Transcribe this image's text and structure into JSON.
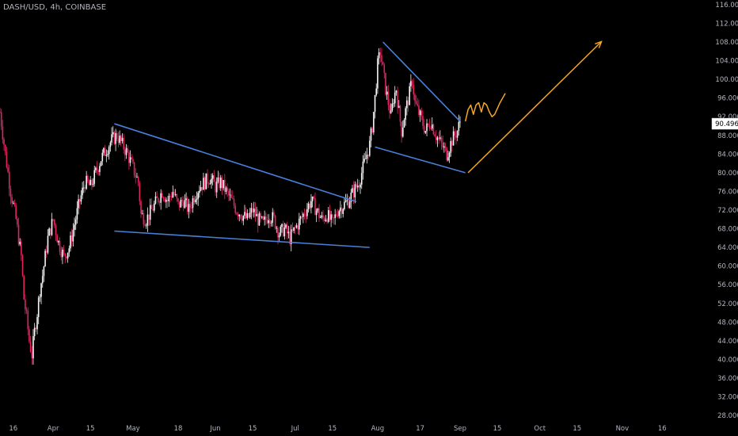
{
  "header": {
    "symbol_line": "DASH/USD, 4h, COINBASE"
  },
  "chart_data": {
    "type": "candlestick",
    "title": "DASH/USD, 4h, COINBASE",
    "yaxis": {
      "position": "right",
      "ticks": [
        116,
        112,
        108,
        104,
        100,
        96,
        92,
        88,
        84,
        80,
        76,
        72,
        68,
        64,
        60,
        56,
        52,
        48,
        44,
        40,
        36,
        32,
        28
      ],
      "tick_labels": [
        "116.000",
        "112.000",
        "108.000",
        "104.000",
        "100.000",
        "96.000",
        "92.000",
        "88.000",
        "84.000",
        "80.000",
        "76.000",
        "72.000",
        "68.000",
        "64.000",
        "60.000",
        "56.000",
        "52.000",
        "48.000",
        "44.000",
        "40.000",
        "36.000",
        "32.000",
        "28.000"
      ],
      "ylim": [
        27,
        117
      ]
    },
    "xaxis": {
      "labels": [
        {
          "label": "16",
          "day": -15
        },
        {
          "label": "Apr",
          "day": 0
        },
        {
          "label": "15",
          "day": 14
        },
        {
          "label": "May",
          "day": 30
        },
        {
          "label": "18",
          "day": 47
        },
        {
          "label": "Jun",
          "day": 61
        },
        {
          "label": "15",
          "day": 75
        },
        {
          "label": "Jul",
          "day": 91
        },
        {
          "label": "15",
          "day": 105
        },
        {
          "label": "Aug",
          "day": 122
        },
        {
          "label": "17",
          "day": 138
        },
        {
          "label": "Sep",
          "day": 153
        },
        {
          "label": "15",
          "day": 167
        },
        {
          "label": "Oct",
          "day": 183
        },
        {
          "label": "15",
          "day": 197
        },
        {
          "label": "Nov",
          "day": 214
        },
        {
          "label": "16",
          "day": 229
        }
      ],
      "xlim": [
        -20,
        245
      ]
    },
    "last_price": {
      "label": "90.496",
      "value": 90.496
    },
    "colors": {
      "up": "#f7f7f7",
      "down": "#e0245e",
      "trendline": "#4a7fd9",
      "projection": "#f5a623"
    },
    "price_path": [
      [
        -20,
        93
      ],
      [
        -18,
        84
      ],
      [
        -16,
        76
      ],
      [
        -14,
        70
      ],
      [
        -12,
        62
      ],
      [
        -11,
        53
      ],
      [
        -10,
        49
      ],
      [
        -9,
        44
      ],
      [
        -8,
        41
      ],
      [
        -7,
        46
      ],
      [
        -6,
        50
      ],
      [
        -5,
        55
      ],
      [
        -4,
        58
      ],
      [
        -3,
        62
      ],
      [
        -2,
        66
      ],
      [
        0,
        70
      ],
      [
        2,
        65
      ],
      [
        4,
        62
      ],
      [
        6,
        64
      ],
      [
        8,
        69
      ],
      [
        10,
        74
      ],
      [
        12,
        78
      ],
      [
        14,
        77
      ],
      [
        16,
        80
      ],
      [
        18,
        83
      ],
      [
        20,
        85
      ],
      [
        22,
        87
      ],
      [
        24,
        88
      ],
      [
        26,
        86
      ],
      [
        28,
        84
      ],
      [
        30,
        81
      ],
      [
        32,
        78
      ],
      [
        33,
        71
      ],
      [
        35,
        70
      ],
      [
        37,
        72
      ],
      [
        39,
        74
      ],
      [
        41,
        76
      ],
      [
        43,
        74
      ],
      [
        45,
        76
      ],
      [
        47,
        73
      ],
      [
        49,
        74
      ],
      [
        51,
        72
      ],
      [
        53,
        75
      ],
      [
        55,
        77
      ],
      [
        57,
        78
      ],
      [
        59,
        79
      ],
      [
        61,
        77
      ],
      [
        63,
        78
      ],
      [
        65,
        76
      ],
      [
        67,
        74
      ],
      [
        69,
        72
      ],
      [
        71,
        71
      ],
      [
        73,
        70
      ],
      [
        75,
        72
      ],
      [
        77,
        70
      ],
      [
        79,
        69
      ],
      [
        81,
        71
      ],
      [
        83,
        70
      ],
      [
        85,
        67
      ],
      [
        87,
        68
      ],
      [
        89,
        66
      ],
      [
        91,
        68
      ],
      [
        93,
        70
      ],
      [
        95,
        72
      ],
      [
        97,
        74
      ],
      [
        99,
        72
      ],
      [
        101,
        70
      ],
      [
        103,
        71
      ],
      [
        105,
        69
      ],
      [
        107,
        72
      ],
      [
        109,
        73
      ],
      [
        111,
        74
      ],
      [
        113,
        76
      ],
      [
        115,
        78
      ],
      [
        117,
        82
      ],
      [
        119,
        86
      ],
      [
        120,
        90
      ],
      [
        121,
        96
      ],
      [
        122,
        103
      ],
      [
        123,
        106
      ],
      [
        124,
        102
      ],
      [
        125,
        98
      ],
      [
        126,
        95
      ],
      [
        127,
        92
      ],
      [
        128,
        96
      ],
      [
        129,
        98
      ],
      [
        130,
        93
      ],
      [
        131,
        89
      ],
      [
        132,
        92
      ],
      [
        134,
        97
      ],
      [
        135,
        100
      ],
      [
        136,
        95
      ],
      [
        138,
        92
      ],
      [
        140,
        89
      ],
      [
        142,
        91
      ],
      [
        144,
        88
      ],
      [
        146,
        86
      ],
      [
        148,
        84
      ],
      [
        150,
        87
      ],
      [
        152,
        89
      ],
      [
        153,
        91
      ]
    ],
    "trendlines": [
      {
        "name": "wedge-upper",
        "p1": [
          23,
          90.5
        ],
        "p2": [
          114,
          73.8
        ]
      },
      {
        "name": "wedge-lower",
        "p1": [
          23,
          67.5
        ],
        "p2": [
          119,
          64
        ]
      },
      {
        "name": "flag-upper",
        "p1": [
          124,
          108
        ],
        "p2": [
          153,
          91
        ]
      },
      {
        "name": "flag-lower",
        "p1": [
          121,
          85.5
        ],
        "p2": [
          155,
          80
        ]
      }
    ],
    "projections": [
      {
        "name": "wave-squiggle",
        "points": [
          [
            155,
            91
          ],
          [
            156,
            93.5
          ],
          [
            157,
            94.5
          ],
          [
            158,
            92.5
          ],
          [
            159,
            94.5
          ],
          [
            160,
            95
          ],
          [
            161,
            93
          ],
          [
            162,
            95
          ],
          [
            163,
            94.5
          ],
          [
            164,
            93
          ],
          [
            165,
            92
          ],
          [
            166,
            92.5
          ],
          [
            168,
            95
          ],
          [
            170,
            97
          ]
        ]
      },
      {
        "name": "target-arrow",
        "points": [
          [
            156,
            80
          ],
          [
            206,
            108
          ]
        ]
      }
    ]
  }
}
